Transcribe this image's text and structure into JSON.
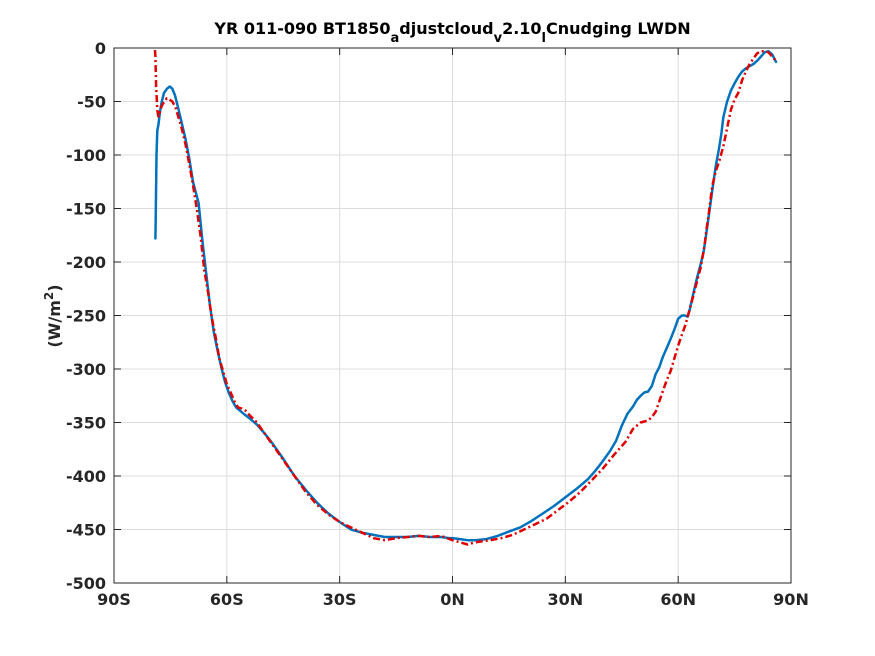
{
  "chart_data": {
    "type": "line",
    "title": {
      "parts": [
        {
          "text": "YR 011-090 BT1850",
          "shift": "base"
        },
        {
          "text": "a",
          "shift": "sub"
        },
        {
          "text": "djustcloud",
          "shift": "base"
        },
        {
          "text": "v",
          "shift": "sub"
        },
        {
          "text": "2.10",
          "shift": "base"
        },
        {
          "text": "l",
          "shift": "sub"
        },
        {
          "text": "Cnudging LWDN",
          "shift": "base"
        }
      ]
    },
    "xlabel": "",
    "ylabel": {
      "parts": [
        {
          "text": "(W/m",
          "shift": "base"
        },
        {
          "text": "2",
          "shift": "super"
        },
        {
          "text": ")",
          "shift": "base"
        }
      ]
    },
    "xlim": [
      -90,
      90
    ],
    "ylim": [
      -500,
      0
    ],
    "grid": true,
    "x_ticks": [
      {
        "value": -90,
        "label": "90S"
      },
      {
        "value": -60,
        "label": "60S"
      },
      {
        "value": -30,
        "label": "30S"
      },
      {
        "value": 0,
        "label": "0N"
      },
      {
        "value": 30,
        "label": "30N"
      },
      {
        "value": 60,
        "label": "60N"
      },
      {
        "value": 90,
        "label": "90N"
      }
    ],
    "y_ticks": [
      {
        "value": 0,
        "label": "0"
      },
      {
        "value": -50,
        "label": "-50"
      },
      {
        "value": -100,
        "label": "-100"
      },
      {
        "value": -150,
        "label": "-150"
      },
      {
        "value": -200,
        "label": "-200"
      },
      {
        "value": -250,
        "label": "-250"
      },
      {
        "value": -300,
        "label": "-300"
      },
      {
        "value": -350,
        "label": "-350"
      },
      {
        "value": -400,
        "label": "-400"
      },
      {
        "value": -450,
        "label": "-450"
      },
      {
        "value": -500,
        "label": "-500"
      }
    ],
    "series": [
      {
        "color": "#0072BD",
        "style": "solid",
        "x": [
          -79,
          -78.9,
          -78.7,
          -78.5,
          -78.2,
          -77.8,
          -77.3,
          -76.7,
          -75.9,
          -75.2,
          -74.5,
          -73.8,
          -73,
          -72,
          -71,
          -70,
          -69,
          -67.5,
          -66.5,
          -65.5,
          -64.5,
          -63.5,
          -62.5,
          -61.5,
          -60.5,
          -59.5,
          -58.5,
          -57.5,
          -56.5,
          -55.5,
          -54,
          -52,
          -50,
          -48,
          -45,
          -42,
          -39,
          -36,
          -33,
          -30,
          -27,
          -24,
          -21,
          -18,
          -15,
          -12,
          -9,
          -6,
          -3,
          -1,
          0,
          2,
          4,
          6,
          9,
          12,
          15,
          18,
          21,
          24,
          27,
          30,
          33,
          36,
          38,
          40,
          42,
          43.5,
          45,
          46.5,
          48,
          49,
          50,
          51,
          52,
          53,
          54,
          55,
          56,
          57,
          58,
          59,
          60,
          61,
          61.8,
          62.5,
          63,
          64,
          65,
          66,
          66.8,
          67.3,
          68,
          69,
          70,
          70.8,
          71.5,
          72,
          73,
          74,
          75,
          76,
          77,
          78,
          79,
          80,
          81,
          82,
          83,
          84,
          85,
          86
        ],
        "y": [
          -178,
          -160,
          -100,
          -77,
          -72,
          -60,
          -50,
          -42,
          -38,
          -36,
          -38,
          -44,
          -55,
          -70,
          -85,
          -103,
          -125,
          -145,
          -180,
          -210,
          -240,
          -265,
          -282,
          -298,
          -312,
          -322,
          -330,
          -336,
          -339,
          -342,
          -346,
          -352,
          -360,
          -369,
          -384,
          -400,
          -413,
          -425,
          -435,
          -443,
          -450,
          -453,
          -455,
          -457,
          -457,
          -457,
          -456,
          -457,
          -457,
          -458,
          -458,
          -459,
          -460,
          -460,
          -459,
          -456,
          -452,
          -448,
          -442,
          -435,
          -428,
          -420,
          -412,
          -403,
          -395,
          -386,
          -376,
          -367,
          -353,
          -342,
          -335,
          -329,
          -325,
          -322,
          -321,
          -316,
          -305,
          -298,
          -288,
          -280,
          -272,
          -263,
          -253,
          -250,
          -250,
          -251,
          -246,
          -230,
          -215,
          -202,
          -190,
          -178,
          -160,
          -135,
          -110,
          -95,
          -80,
          -65,
          -50,
          -40,
          -33,
          -27,
          -22,
          -19,
          -17,
          -15,
          -12,
          -8,
          -4,
          -3,
          -6,
          -13
        ]
      },
      {
        "color": "#E00000",
        "style": "dash-dot",
        "x": [
          -79.1,
          -79,
          -78.8,
          -78.5,
          -78.2,
          -77.8,
          -77.4,
          -77,
          -76.5,
          -76,
          -75.3,
          -74.5,
          -73.7,
          -73,
          -72,
          -71,
          -70,
          -69,
          -68,
          -67,
          -66,
          -65,
          -64,
          -63,
          -62,
          -61,
          -60,
          -59,
          -58,
          -57,
          -56,
          -55,
          -54,
          -52,
          -50,
          -48,
          -45,
          -42,
          -39,
          -36,
          -33,
          -30,
          -27,
          -24,
          -21,
          -18,
          -15,
          -12,
          -9,
          -6,
          -3,
          0,
          2,
          4,
          6,
          8,
          10,
          13,
          16,
          19,
          22,
          25,
          28,
          31,
          34,
          37,
          40,
          43,
          46,
          48,
          50,
          52,
          53,
          54,
          55,
          56,
          57,
          58,
          59,
          60,
          61,
          62,
          63,
          64,
          65,
          66,
          67,
          67.5,
          68,
          68.5,
          69,
          70,
          71,
          72,
          73,
          74,
          75,
          76,
          77,
          78,
          79,
          80,
          81,
          82,
          83,
          84,
          85,
          86
        ],
        "y": [
          -2,
          -8,
          -35,
          -58,
          -64,
          -60,
          -55,
          -52,
          -50,
          -47,
          -48,
          -50,
          -55,
          -63,
          -75,
          -90,
          -108,
          -128,
          -150,
          -175,
          -208,
          -228,
          -252,
          -270,
          -290,
          -302,
          -314,
          -322,
          -330,
          -336,
          -337,
          -339,
          -343,
          -350,
          -360,
          -370,
          -385,
          -400,
          -415,
          -427,
          -436,
          -443,
          -448,
          -453,
          -458,
          -460,
          -458,
          -457,
          -456,
          -457,
          -456,
          -460,
          -462,
          -464,
          -462,
          -461,
          -460,
          -458,
          -455,
          -450,
          -445,
          -440,
          -432,
          -424,
          -415,
          -404,
          -393,
          -380,
          -368,
          -356,
          -350,
          -348,
          -345,
          -340,
          -330,
          -320,
          -310,
          -302,
          -290,
          -278,
          -268,
          -258,
          -245,
          -232,
          -218,
          -205,
          -185,
          -170,
          -158,
          -145,
          -130,
          -115,
          -105,
          -92,
          -75,
          -58,
          -48,
          -42,
          -30,
          -22,
          -15,
          -10,
          -5,
          -3,
          -3,
          -4,
          -8,
          -12
        ]
      }
    ]
  }
}
